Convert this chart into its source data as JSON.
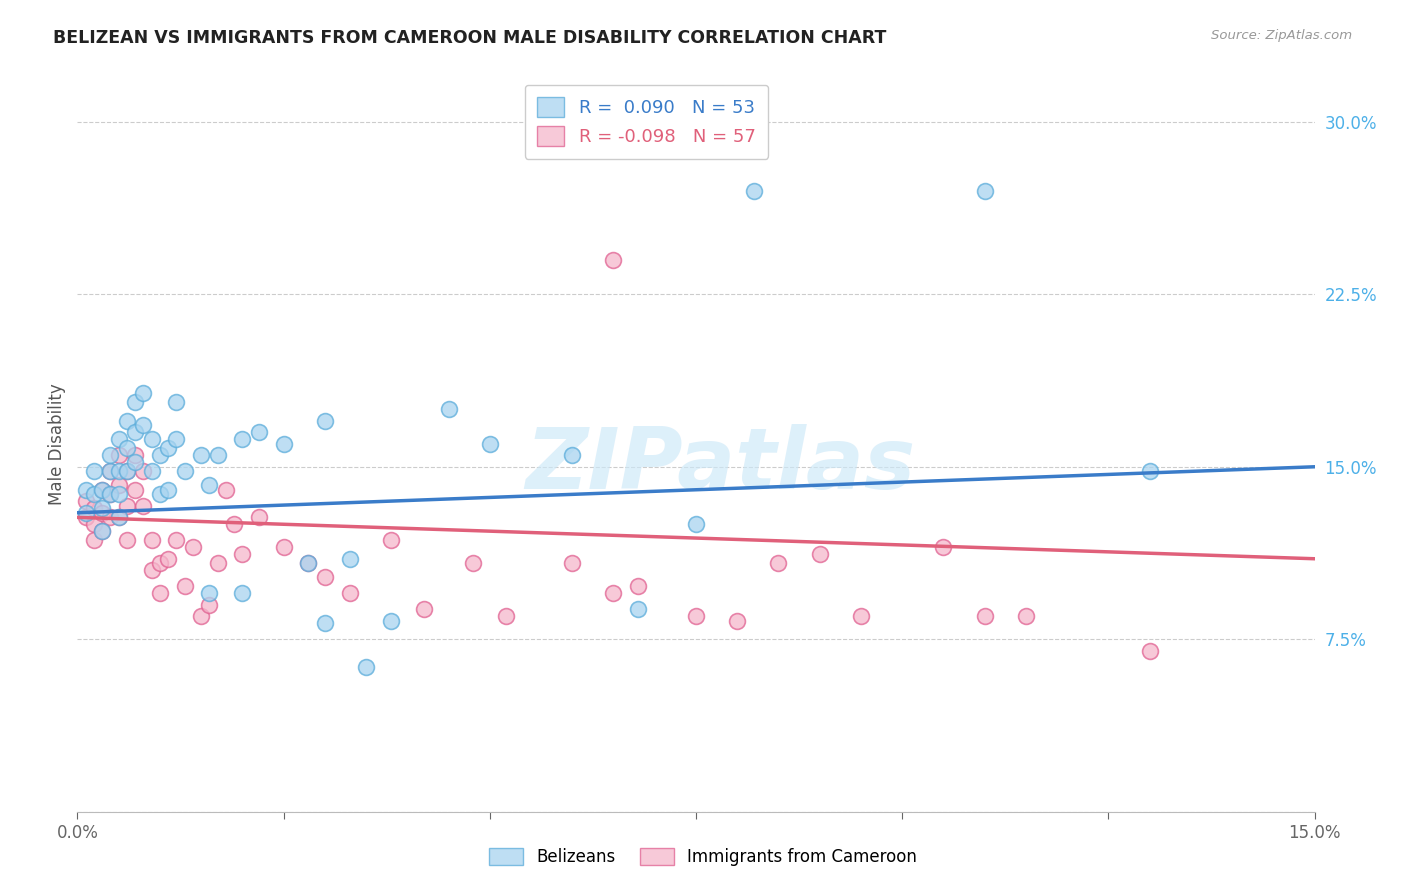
{
  "title": "BELIZEAN VS IMMIGRANTS FROM CAMEROON MALE DISABILITY CORRELATION CHART",
  "source": "Source: ZipAtlas.com",
  "ylabel": "Male Disability",
  "legend_label1": "Belizeans",
  "legend_label2": "Immigrants from Cameroon",
  "r1": 0.09,
  "n1": 53,
  "r2": -0.098,
  "n2": 57,
  "xlim": [
    0.0,
    0.15
  ],
  "ylim": [
    0.0,
    0.32
  ],
  "yticks": [
    0.0,
    0.075,
    0.15,
    0.225,
    0.3
  ],
  "ytick_labels": [
    "",
    "7.5%",
    "15.0%",
    "22.5%",
    "30.0%"
  ],
  "xticks": [
    0.0,
    0.025,
    0.05,
    0.075,
    0.1,
    0.125,
    0.15
  ],
  "xtick_labels": [
    "0.0%",
    "",
    "",
    "",
    "",
    "",
    "15.0%"
  ],
  "color_blue": "#a8d4f0",
  "color_pink": "#f5b8cc",
  "edge_blue": "#5aacda",
  "edge_pink": "#e06090",
  "line_blue": "#3a7cc9",
  "line_pink": "#e0607a",
  "watermark": "ZIPatlas",
  "blue_line_y0": 0.13,
  "blue_line_y1": 0.15,
  "pink_line_y0": 0.128,
  "pink_line_y1": 0.11,
  "blue_x": [
    0.001,
    0.001,
    0.002,
    0.002,
    0.003,
    0.003,
    0.003,
    0.004,
    0.004,
    0.004,
    0.005,
    0.005,
    0.005,
    0.005,
    0.006,
    0.006,
    0.006,
    0.007,
    0.007,
    0.007,
    0.008,
    0.008,
    0.009,
    0.009,
    0.01,
    0.01,
    0.011,
    0.011,
    0.012,
    0.012,
    0.013,
    0.015,
    0.016,
    0.017,
    0.02,
    0.022,
    0.025,
    0.03,
    0.033,
    0.038,
    0.05,
    0.06,
    0.068,
    0.075,
    0.082,
    0.11,
    0.13,
    0.02,
    0.03,
    0.045,
    0.016,
    0.028,
    0.035
  ],
  "blue_y": [
    0.13,
    0.14,
    0.148,
    0.138,
    0.14,
    0.132,
    0.122,
    0.148,
    0.138,
    0.155,
    0.162,
    0.148,
    0.138,
    0.128,
    0.17,
    0.158,
    0.148,
    0.178,
    0.165,
    0.152,
    0.182,
    0.168,
    0.162,
    0.148,
    0.155,
    0.138,
    0.158,
    0.14,
    0.178,
    0.162,
    0.148,
    0.155,
    0.142,
    0.155,
    0.162,
    0.165,
    0.16,
    0.17,
    0.11,
    0.083,
    0.16,
    0.155,
    0.088,
    0.125,
    0.27,
    0.27,
    0.148,
    0.095,
    0.082,
    0.175,
    0.095,
    0.108,
    0.063
  ],
  "pink_x": [
    0.001,
    0.001,
    0.002,
    0.002,
    0.002,
    0.003,
    0.003,
    0.003,
    0.004,
    0.004,
    0.004,
    0.005,
    0.005,
    0.005,
    0.006,
    0.006,
    0.006,
    0.007,
    0.007,
    0.008,
    0.008,
    0.009,
    0.009,
    0.01,
    0.01,
    0.011,
    0.012,
    0.013,
    0.014,
    0.015,
    0.016,
    0.017,
    0.018,
    0.019,
    0.02,
    0.022,
    0.025,
    0.028,
    0.03,
    0.033,
    0.038,
    0.042,
    0.048,
    0.052,
    0.06,
    0.065,
    0.068,
    0.075,
    0.08,
    0.085,
    0.09,
    0.095,
    0.105,
    0.11,
    0.115,
    0.13,
    0.065
  ],
  "pink_y": [
    0.128,
    0.135,
    0.132,
    0.125,
    0.118,
    0.14,
    0.13,
    0.122,
    0.148,
    0.138,
    0.128,
    0.155,
    0.142,
    0.128,
    0.148,
    0.133,
    0.118,
    0.155,
    0.14,
    0.148,
    0.133,
    0.118,
    0.105,
    0.108,
    0.095,
    0.11,
    0.118,
    0.098,
    0.115,
    0.085,
    0.09,
    0.108,
    0.14,
    0.125,
    0.112,
    0.128,
    0.115,
    0.108,
    0.102,
    0.095,
    0.118,
    0.088,
    0.108,
    0.085,
    0.108,
    0.095,
    0.098,
    0.085,
    0.083,
    0.108,
    0.112,
    0.085,
    0.115,
    0.085,
    0.085,
    0.07,
    0.24
  ]
}
